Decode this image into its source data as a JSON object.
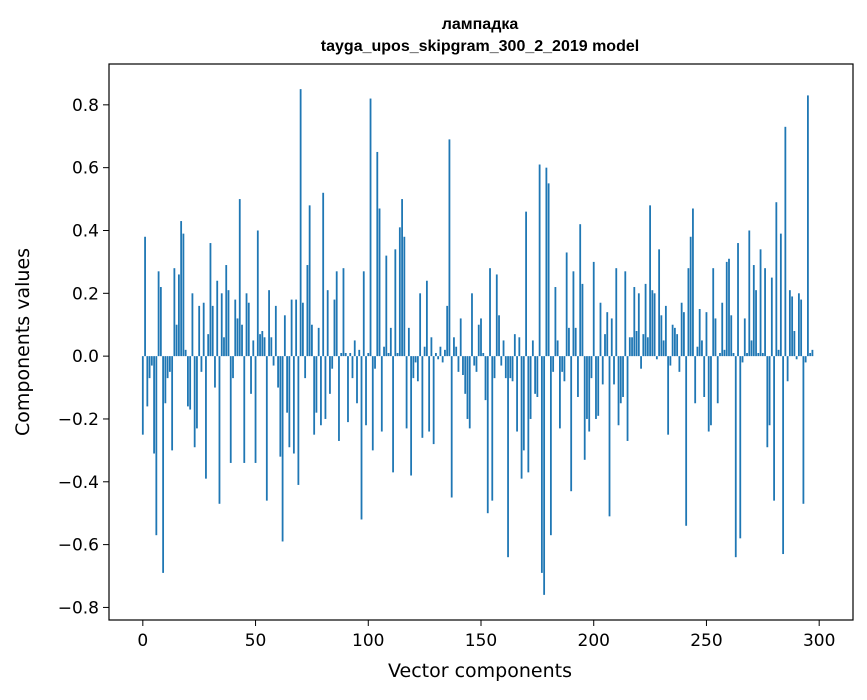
{
  "chart_data": {
    "type": "bar",
    "title": "лампадка",
    "subtitle": "tayga_upos_skipgram_300_2_2019 model",
    "xlabel": "Vector components",
    "ylabel": "Components values",
    "xlim": [
      -15,
      315
    ],
    "ylim": [
      -0.84,
      0.93
    ],
    "xticks": [
      0,
      50,
      100,
      150,
      200,
      250,
      300
    ],
    "xtick_labels": [
      "0",
      "50",
      "100",
      "150",
      "200",
      "250",
      "300"
    ],
    "yticks": [
      -0.8,
      -0.6,
      -0.4,
      -0.2,
      0.0,
      0.2,
      0.4,
      0.6,
      0.8
    ],
    "ytick_labels": [
      "−0.8",
      "−0.6",
      "−0.4",
      "−0.2",
      "0.0",
      "0.2",
      "0.4",
      "0.6",
      "0.8"
    ],
    "grid": false,
    "bar_color": "#1f77b4",
    "values": [
      -0.25,
      0.38,
      -0.16,
      -0.07,
      -0.03,
      -0.31,
      -0.57,
      0.27,
      0.22,
      -0.69,
      -0.15,
      -0.07,
      -0.05,
      -0.3,
      0.28,
      0.1,
      0.26,
      0.43,
      0.39,
      0.02,
      -0.16,
      -0.17,
      0.2,
      -0.29,
      -0.23,
      0.16,
      -0.05,
      0.17,
      -0.39,
      0.07,
      0.36,
      0.16,
      -0.1,
      0.24,
      -0.47,
      0.2,
      0.06,
      0.29,
      0.21,
      -0.34,
      -0.07,
      0.18,
      0.12,
      0.5,
      0.1,
      -0.34,
      0.2,
      0.17,
      -0.12,
      0.05,
      -0.34,
      0.4,
      0.07,
      0.08,
      0.06,
      -0.46,
      0.21,
      0.06,
      -0.03,
      0.16,
      -0.1,
      -0.32,
      -0.59,
      0.13,
      -0.18,
      -0.29,
      0.18,
      -0.31,
      0.18,
      -0.41,
      0.85,
      0.17,
      -0.07,
      0.29,
      0.48,
      0.1,
      -0.25,
      -0.18,
      0.09,
      -0.22,
      0.52,
      -0.2,
      0.21,
      -0.12,
      -0.04,
      0.18,
      0.27,
      -0.27,
      0.01,
      0.28,
      0.01,
      -0.21,
      0.01,
      -0.07,
      0.05,
      -0.15,
      0.02,
      -0.52,
      0.27,
      -0.22,
      0.01,
      0.82,
      -0.3,
      -0.04,
      0.65,
      0.47,
      -0.24,
      0.03,
      0.32,
      0.01,
      0.09,
      -0.37,
      0.34,
      0.01,
      0.41,
      0.5,
      0.38,
      -0.23,
      0.09,
      -0.38,
      -0.07,
      -0.02,
      -0.08,
      0.2,
      -0.26,
      0.03,
      0.24,
      -0.24,
      0.06,
      -0.28,
      0.01,
      -0.01,
      0.03,
      -0.02,
      0.02,
      0.16,
      0.69,
      -0.45,
      0.06,
      0.03,
      -0.05,
      0.12,
      -0.06,
      -0.12,
      -0.2,
      -0.23,
      0.2,
      -0.03,
      -0.05,
      0.1,
      0.12,
      0.01,
      -0.14,
      -0.5,
      0.28,
      -0.46,
      -0.07,
      0.26,
      0.13,
      -0.03,
      0.05,
      -0.07,
      -0.64,
      -0.07,
      -0.08,
      0.07,
      -0.24,
      0.06,
      -0.39,
      -0.3,
      0.46,
      -0.37,
      -0.2,
      0.05,
      -0.12,
      -0.13,
      0.61,
      -0.69,
      -0.76,
      0.6,
      0.55,
      -0.57,
      -0.05,
      0.22,
      0.05,
      -0.23,
      -0.05,
      -0.08,
      0.33,
      0.09,
      -0.43,
      0.27,
      0.09,
      -0.13,
      0.42,
      0.23,
      -0.33,
      -0.2,
      -0.24,
      -0.07,
      0.3,
      -0.2,
      -0.19,
      0.17,
      -0.09,
      0.07,
      0.14,
      -0.51,
      0.12,
      -0.09,
      0.28,
      -0.22,
      -0.15,
      -0.13,
      0.27,
      -0.27,
      0.06,
      0.06,
      0.22,
      0.08,
      0.2,
      -0.04,
      0.07,
      0.23,
      0.06,
      0.48,
      0.21,
      0.2,
      -0.01,
      0.34,
      0.13,
      0.05,
      0.16,
      -0.25,
      -0.03,
      0.1,
      0.09,
      0.07,
      -0.05,
      0.17,
      0.14,
      -0.54,
      0.28,
      0.38,
      0.47,
      -0.15,
      0.03,
      0.15,
      0.05,
      -0.13,
      0.14,
      -0.24,
      -0.22,
      0.28,
      0.12,
      -0.15,
      0.01,
      0.17,
      0.02,
      0.3,
      0.31,
      0.13,
      0.01,
      -0.64,
      0.36,
      -0.58,
      -0.02,
      0.12,
      0.01,
      0.4,
      0.05,
      0.29,
      0.21,
      0.01,
      0.34,
      0.01,
      0.28,
      -0.29,
      -0.22,
      0.25,
      -0.46,
      0.49,
      0.02,
      0.39,
      -0.63,
      0.73,
      -0.08,
      0.21,
      0.19,
      0.08,
      -0.01,
      0.2,
      0.18,
      -0.47,
      -0.02,
      0.83,
      0.01,
      0.02
    ]
  }
}
